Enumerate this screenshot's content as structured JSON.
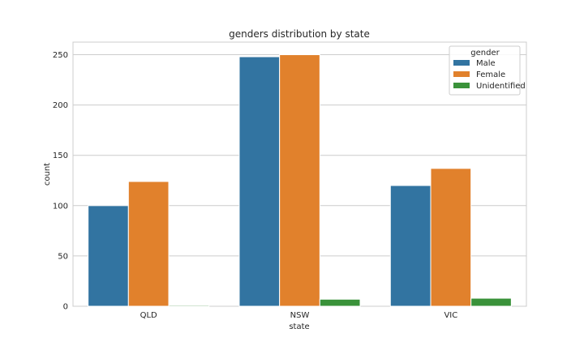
{
  "chart_data": {
    "type": "bar",
    "title": "genders distribution by state",
    "xlabel": "state",
    "ylabel": "count",
    "categories": [
      "QLD",
      "NSW",
      "VIC"
    ],
    "series": [
      {
        "name": "Male",
        "color": "#3274a1",
        "values": [
          100,
          248,
          120
        ]
      },
      {
        "name": "Female",
        "color": "#e1812c",
        "values": [
          124,
          250,
          137
        ]
      },
      {
        "name": "Unidentified",
        "color": "#3a923a",
        "values": [
          1,
          7,
          8
        ]
      }
    ],
    "ylim": [
      0,
      262.5
    ],
    "yticks": [
      0,
      50,
      100,
      150,
      200,
      250
    ],
    "grid": true,
    "legend": {
      "title": "gender",
      "placement": "top-right"
    }
  }
}
